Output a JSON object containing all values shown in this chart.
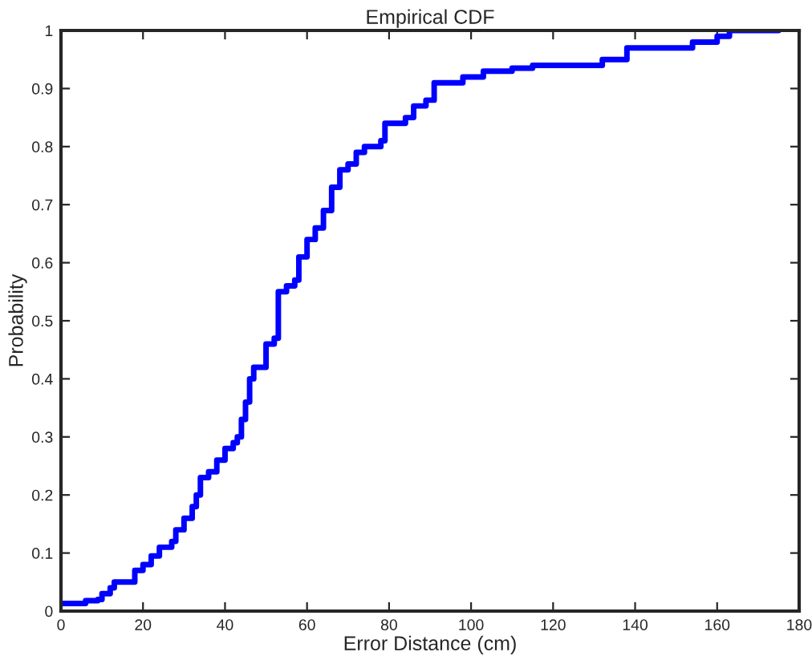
{
  "chart_data": {
    "type": "step",
    "title": "Empirical CDF",
    "xlabel": "Error Distance (cm)",
    "ylabel": "Probability",
    "xlim": [
      0,
      180
    ],
    "xticks": [
      0,
      20,
      40,
      60,
      80,
      100,
      120,
      140,
      160,
      180
    ],
    "ylim": [
      0,
      1
    ],
    "yticks": [
      0,
      0.1,
      0.2,
      0.3,
      0.4,
      0.5,
      0.6,
      0.7,
      0.8,
      0.9,
      1
    ],
    "grid": false,
    "legend": false,
    "marker": "none",
    "line_style": "solid",
    "series": [
      {
        "color": "#0000ff",
        "x": [
          0,
          5,
          6,
          9,
          10,
          12,
          13,
          17,
          18,
          20,
          22,
          24,
          27,
          28,
          30,
          32,
          33,
          34,
          36,
          38,
          40,
          42,
          43,
          44,
          45,
          46,
          47,
          49,
          50,
          52,
          53,
          55,
          57,
          58,
          60,
          62,
          64,
          66,
          68,
          70,
          72,
          74,
          78,
          79,
          84,
          86,
          89,
          91,
          98,
          103,
          110,
          115,
          132,
          138,
          154,
          160,
          163,
          175
        ],
        "values": [
          0.013,
          0.013,
          0.018,
          0.02,
          0.03,
          0.04,
          0.05,
          0.05,
          0.07,
          0.08,
          0.095,
          0.11,
          0.12,
          0.14,
          0.16,
          0.18,
          0.2,
          0.23,
          0.24,
          0.26,
          0.28,
          0.29,
          0.3,
          0.33,
          0.36,
          0.4,
          0.42,
          0.42,
          0.46,
          0.47,
          0.55,
          0.56,
          0.57,
          0.61,
          0.64,
          0.66,
          0.69,
          0.73,
          0.76,
          0.77,
          0.79,
          0.8,
          0.81,
          0.84,
          0.85,
          0.87,
          0.88,
          0.91,
          0.92,
          0.93,
          0.935,
          0.94,
          0.95,
          0.97,
          0.98,
          0.99,
          1.0,
          1.0
        ]
      }
    ]
  }
}
